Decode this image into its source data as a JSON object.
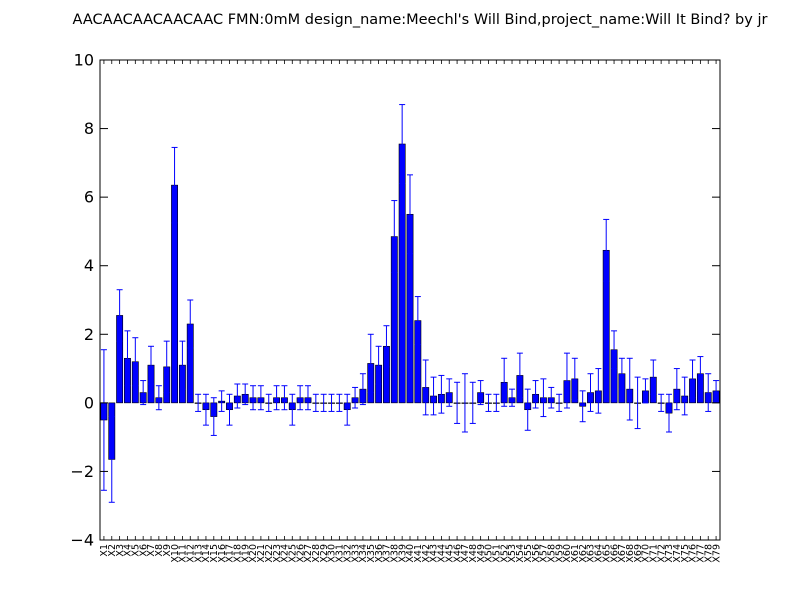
{
  "chart_data": {
    "type": "bar",
    "title": "AACAACAACAACAAC  FMN:0mM  design_name:Meechl's Will Bind,project_name:Will It Bind? by jr",
    "xlabel": "",
    "ylabel": "",
    "ylim": [
      -4,
      10
    ],
    "yticks": [
      -4,
      -2,
      0,
      2,
      4,
      6,
      8,
      10
    ],
    "ytick_labels": [
      "−4",
      "−2",
      "0",
      "2",
      "4",
      "6",
      "8",
      "10"
    ],
    "grid": false,
    "legend": "none",
    "bar_color": "#0000ff",
    "error_color": "#0000ff",
    "categories": [
      "X1",
      "X2",
      "X3",
      "X4",
      "X5",
      "X6",
      "X7",
      "X8",
      "X9",
      "X10",
      "X11",
      "X12",
      "X13",
      "X14",
      "X15",
      "X16",
      "X17",
      "X18",
      "X19",
      "X20",
      "X21",
      "X22",
      "X23",
      "X24",
      "X25",
      "X26",
      "X27",
      "X28",
      "X29",
      "X30",
      "X31",
      "X32",
      "X33",
      "X34",
      "X35",
      "X36",
      "X37",
      "X38",
      "X39",
      "X40",
      "X41",
      "X42",
      "X43",
      "X44",
      "X45",
      "X46",
      "X47",
      "X48",
      "X49",
      "X50",
      "X51",
      "X52",
      "X53",
      "X54",
      "X55",
      "X56",
      "X57",
      "X58",
      "X59",
      "X60",
      "X61",
      "X62",
      "X63",
      "X64",
      "X65",
      "X66",
      "X67",
      "X68",
      "X69",
      "X70",
      "X71",
      "X72",
      "X73",
      "X74",
      "X75",
      "X76",
      "X77",
      "X78",
      "X79"
    ],
    "values": [
      -0.5,
      -1.65,
      2.55,
      1.3,
      1.2,
      0.3,
      1.1,
      0.15,
      1.05,
      6.35,
      1.1,
      2.3,
      0,
      -0.2,
      -0.4,
      0.05,
      -0.2,
      0.2,
      0.25,
      0.15,
      0.15,
      0,
      0.15,
      0.15,
      -0.2,
      0.15,
      0.15,
      0,
      0,
      0,
      0,
      -0.2,
      0.15,
      0.4,
      1.15,
      1.1,
      1.65,
      4.85,
      7.55,
      5.5,
      2.4,
      0.45,
      0.2,
      0.25,
      0.3,
      0,
      0,
      0,
      0.3,
      0,
      0,
      0.6,
      0.15,
      0.8,
      -0.2,
      0.25,
      0.15,
      0.15,
      0,
      0.65,
      0.7,
      -0.1,
      0.3,
      0.35,
      4.45,
      1.55,
      0.85,
      0.4,
      0,
      0.35,
      0.75,
      0,
      -0.3,
      0.4,
      0.2,
      0.7,
      0.85,
      0.3,
      0.35
    ],
    "errors": [
      2.05,
      1.25,
      0.75,
      0.8,
      0.7,
      0.35,
      0.55,
      0.35,
      0.75,
      1.1,
      0.7,
      0.7,
      0.25,
      0.45,
      0.55,
      0.3,
      0.45,
      0.35,
      0.3,
      0.35,
      0.35,
      0.25,
      0.35,
      0.35,
      0.45,
      0.35,
      0.35,
      0.25,
      0.25,
      0.25,
      0.25,
      0.45,
      0.3,
      0.45,
      0.85,
      0.55,
      0.6,
      1.05,
      1.15,
      1.15,
      0.7,
      0.8,
      0.55,
      0.55,
      0.4,
      0.6,
      0.85,
      0.6,
      0.35,
      0.25,
      0.25,
      0.7,
      0.25,
      0.65,
      0.6,
      0.4,
      0.55,
      0.3,
      0.25,
      0.8,
      0.6,
      0.45,
      0.55,
      0.65,
      0.9,
      0.55,
      0.45,
      0.9,
      0.75,
      0.35,
      0.5,
      0.25,
      0.55,
      0.6,
      0.55,
      0.55,
      0.5,
      0.55,
      0.3
    ]
  }
}
